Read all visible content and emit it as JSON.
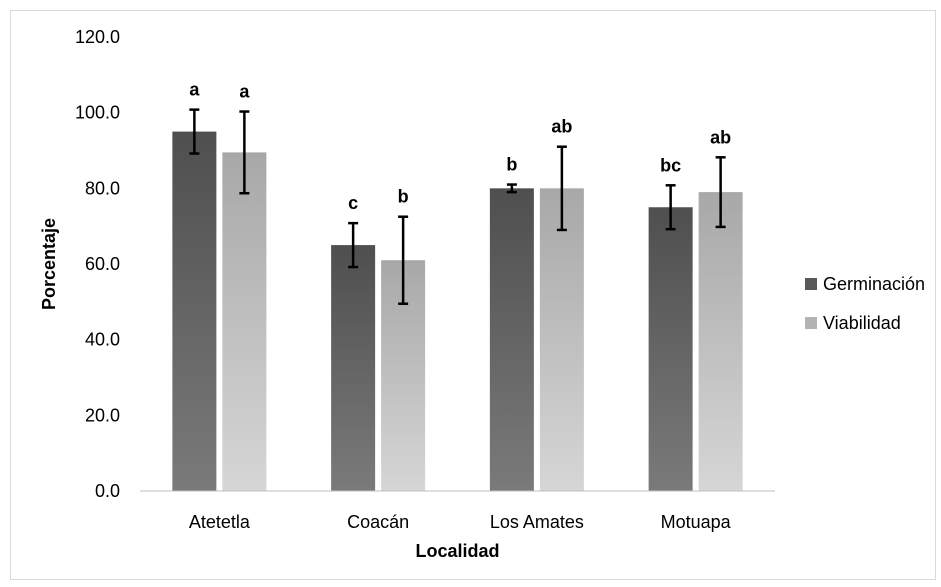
{
  "chart_data": {
    "type": "bar",
    "title": "",
    "xlabel": "Localidad",
    "ylabel": "Porcentaje",
    "ylim": [
      0,
      120
    ],
    "yticks": [
      "0.0",
      "20.0",
      "40.0",
      "60.0",
      "80.0",
      "100.0",
      "120.0"
    ],
    "categories": [
      "Atetetla",
      "Coacán",
      "Los Amates",
      "Motuapa"
    ],
    "series": [
      {
        "name": "Germinación",
        "color": "#595959",
        "values": [
          95,
          65,
          80,
          75
        ],
        "errors": [
          5.8,
          5.8,
          1.0,
          5.8
        ],
        "letters": [
          "a",
          "c",
          "b",
          "bc"
        ]
      },
      {
        "name": "Viabilidad",
        "color": "#b3b3b3",
        "values": [
          89.5,
          61,
          80,
          79
        ],
        "errors": [
          10.8,
          11.5,
          11.0,
          9.2
        ],
        "letters": [
          "a",
          "b",
          "ab",
          "ab"
        ]
      }
    ],
    "legend": "right"
  }
}
